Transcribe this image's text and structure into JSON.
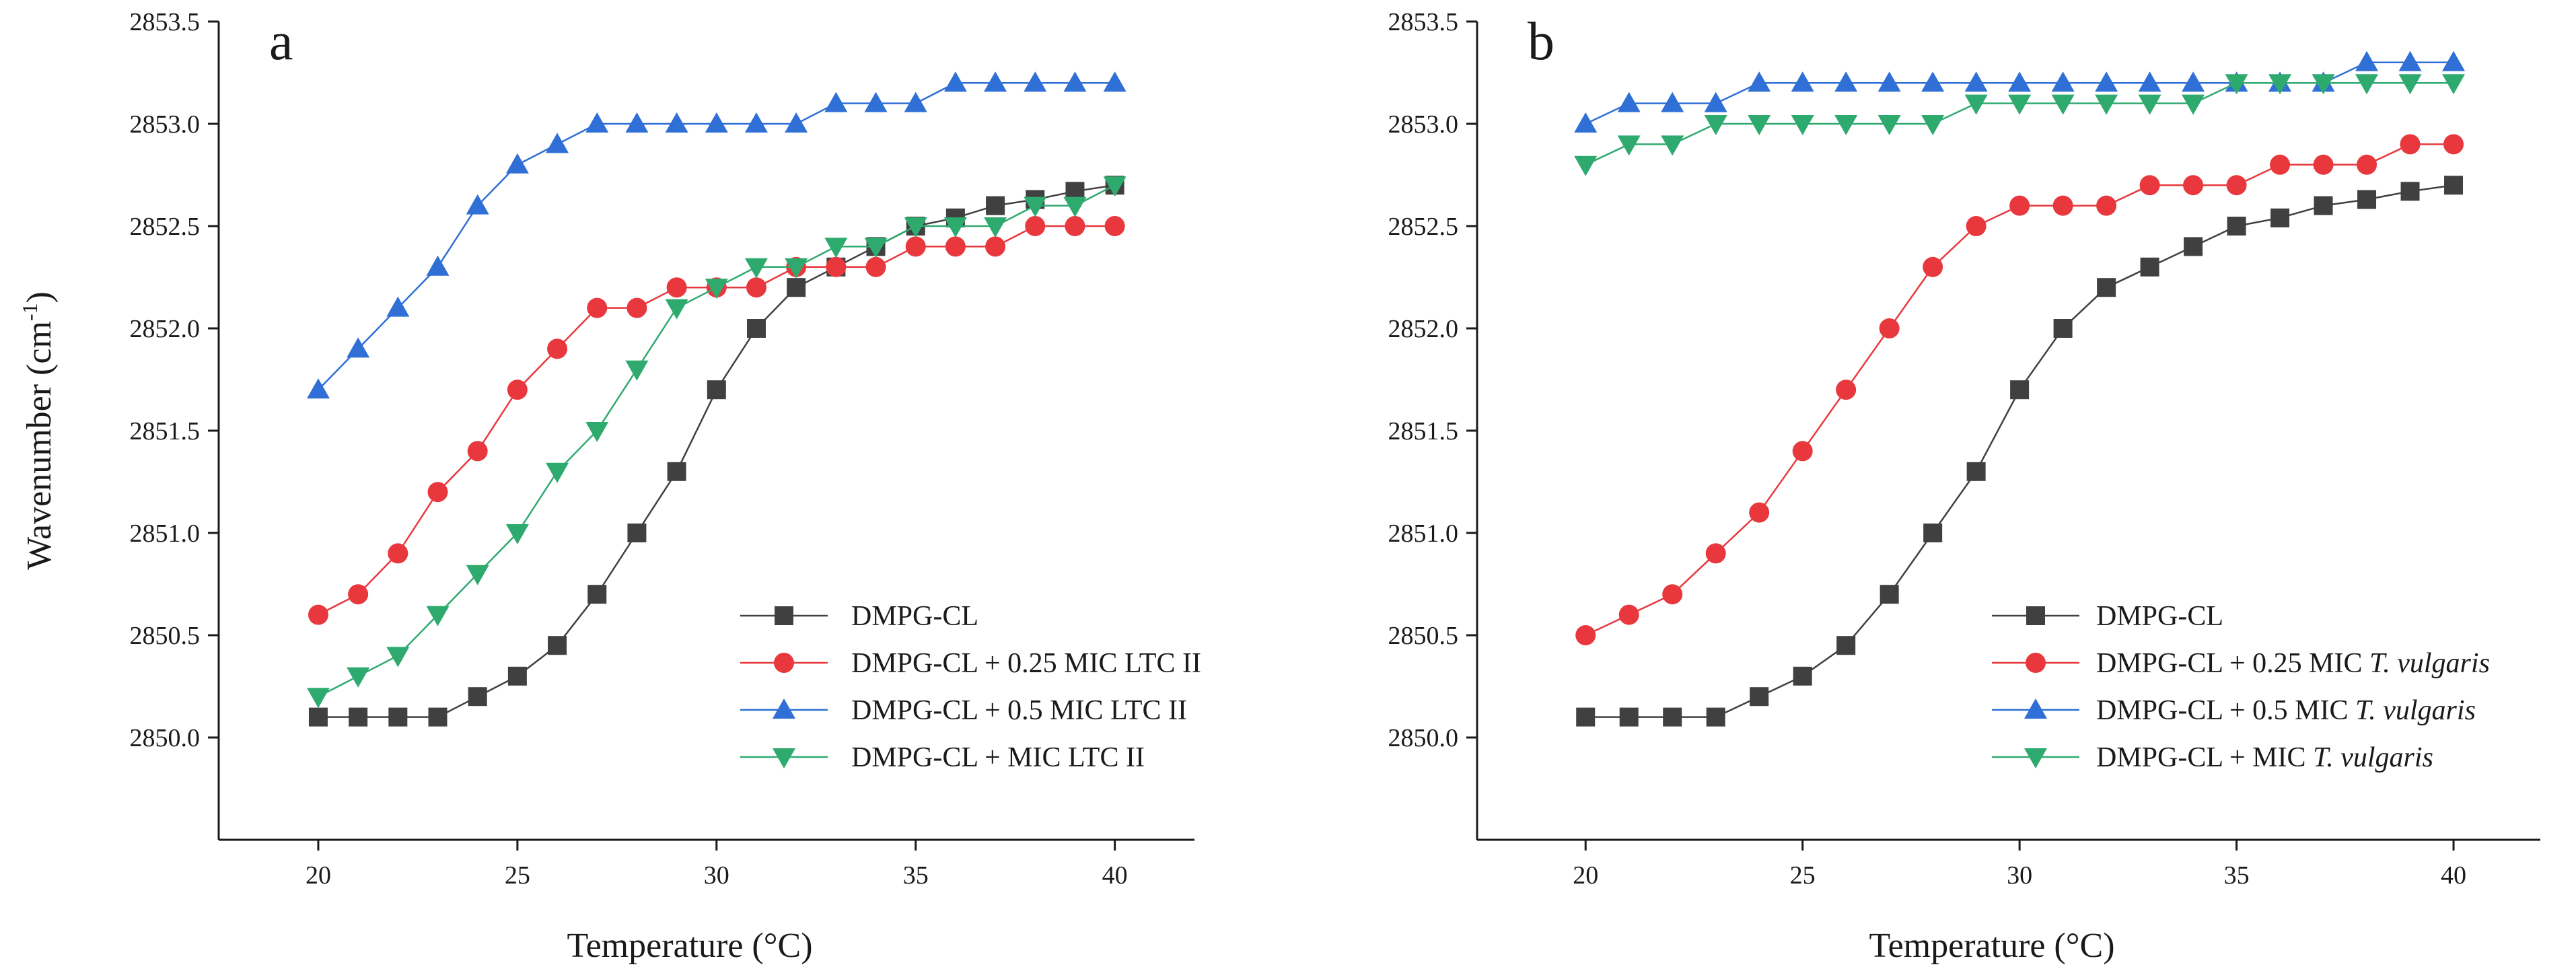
{
  "chart_data": [
    {
      "type": "line",
      "panel_label": "a",
      "xlabel": "Temperature (°C)",
      "ylabel_main": "Wavenumber (cm",
      "ylabel_sup": "-1",
      "ylabel_close": ")",
      "xlim": [
        17.5,
        42
      ],
      "ylim": [
        2849.5,
        2853.5
      ],
      "xticks": [
        20,
        25,
        30,
        35,
        40
      ],
      "xtick_labels": [
        "20",
        "25",
        "30",
        "35",
        "40"
      ],
      "yticks": [
        2850.0,
        2850.5,
        2851.0,
        2851.5,
        2852.0,
        2852.5,
        2853.0,
        2853.5
      ],
      "ytick_labels": [
        "2850.0",
        "2850.5",
        "2851.0",
        "2851.5",
        "2852.0",
        "2852.5",
        "2853.0",
        "2853.5"
      ],
      "grid": false,
      "legend_position": "center-right",
      "x": [
        20,
        21,
        22,
        23,
        24,
        25,
        26,
        27,
        28,
        29,
        30,
        31,
        32,
        33,
        34,
        35,
        36,
        37,
        38,
        39,
        40
      ],
      "series": [
        {
          "name": "DMPG-CL",
          "name_italic": "",
          "color": "#404040",
          "marker": "square",
          "values": [
            2850.1,
            2850.1,
            2850.1,
            2850.1,
            2850.2,
            2850.3,
            2850.45,
            2850.7,
            2851.0,
            2851.3,
            2851.7,
            2852.0,
            2852.2,
            2852.3,
            2852.4,
            2852.5,
            2852.54,
            2852.6,
            2852.63,
            2852.67,
            2852.7
          ]
        },
        {
          "name": "DMPG-CL + 0.25 MIC LTC II",
          "name_italic": "",
          "color": "#e8383d",
          "marker": "circle",
          "values": [
            2850.6,
            2850.7,
            2850.9,
            2851.2,
            2851.4,
            2851.7,
            2851.9,
            2852.1,
            2852.1,
            2852.2,
            2852.2,
            2852.2,
            2852.3,
            2852.3,
            2852.3,
            2852.4,
            2852.4,
            2852.4,
            2852.5,
            2852.5,
            2852.5
          ]
        },
        {
          "name": "DMPG-CL + 0.5 MIC LTC II",
          "name_italic": "",
          "color": "#2f6fd6",
          "marker": "triangle-up",
          "values": [
            2851.7,
            2851.9,
            2852.1,
            2852.3,
            2852.6,
            2852.8,
            2852.9,
            2853.0,
            2853.0,
            2853.0,
            2853.0,
            2853.0,
            2853.0,
            2853.1,
            2853.1,
            2853.1,
            2853.2,
            2853.2,
            2853.2,
            2853.2,
            2853.2
          ]
        },
        {
          "name": "DMPG-CL + MIC LTC II",
          "name_italic": "",
          "color": "#2eaa6f",
          "marker": "triangle-down",
          "values": [
            2850.2,
            2850.3,
            2850.4,
            2850.6,
            2850.8,
            2851.0,
            2851.3,
            2851.5,
            2851.8,
            2852.1,
            2852.2,
            2852.3,
            2852.3,
            2852.4,
            2852.4,
            2852.5,
            2852.5,
            2852.5,
            2852.6,
            2852.6,
            2852.7
          ]
        }
      ]
    },
    {
      "type": "line",
      "panel_label": "b",
      "xlabel": "Temperature (°C)",
      "xlim": [
        17.5,
        42
      ],
      "ylim": [
        2849.5,
        2853.5
      ],
      "xticks": [
        20,
        25,
        30,
        35,
        40
      ],
      "xtick_labels": [
        "20",
        "25",
        "30",
        "35",
        "40"
      ],
      "yticks": [
        2850.0,
        2850.5,
        2851.0,
        2851.5,
        2852.0,
        2852.5,
        2853.0,
        2853.5
      ],
      "ytick_labels": [
        "2850.0",
        "2850.5",
        "2851.0",
        "2851.5",
        "2852.0",
        "2852.5",
        "2853.0",
        "2853.5"
      ],
      "grid": false,
      "legend_position": "center-right",
      "x": [
        20,
        21,
        22,
        23,
        24,
        25,
        26,
        27,
        28,
        29,
        30,
        31,
        32,
        33,
        34,
        35,
        36,
        37,
        38,
        39,
        40
      ],
      "series": [
        {
          "name": "DMPG-CL",
          "name_italic": "",
          "color": "#404040",
          "marker": "square",
          "values": [
            2850.1,
            2850.1,
            2850.1,
            2850.1,
            2850.2,
            2850.3,
            2850.45,
            2850.7,
            2851.0,
            2851.3,
            2851.7,
            2852.0,
            2852.2,
            2852.3,
            2852.4,
            2852.5,
            2852.54,
            2852.6,
            2852.63,
            2852.67,
            2852.7
          ]
        },
        {
          "name": "DMPG-CL + 0.25 MIC ",
          "name_italic": "T. vulgaris",
          "color": "#e8383d",
          "marker": "circle",
          "values": [
            2850.5,
            2850.6,
            2850.7,
            2850.9,
            2851.1,
            2851.4,
            2851.7,
            2852.0,
            2852.3,
            2852.5,
            2852.6,
            2852.6,
            2852.6,
            2852.7,
            2852.7,
            2852.7,
            2852.8,
            2852.8,
            2852.8,
            2852.9,
            2852.9
          ]
        },
        {
          "name": "DMPG-CL + 0.5 MIC ",
          "name_italic": "T. vulgaris",
          "color": "#2f6fd6",
          "marker": "triangle-up",
          "values": [
            2853.0,
            2853.1,
            2853.1,
            2853.1,
            2853.2,
            2853.2,
            2853.2,
            2853.2,
            2853.2,
            2853.2,
            2853.2,
            2853.2,
            2853.2,
            2853.2,
            2853.2,
            2853.2,
            2853.2,
            2853.2,
            2853.3,
            2853.3,
            2853.3
          ]
        },
        {
          "name": "DMPG-CL + MIC ",
          "name_italic": "T. vulgaris",
          "color": "#2eaa6f",
          "marker": "triangle-down",
          "values": [
            2852.8,
            2852.9,
            2852.9,
            2853.0,
            2853.0,
            2853.0,
            2853.0,
            2853.0,
            2853.0,
            2853.1,
            2853.1,
            2853.1,
            2853.1,
            2853.1,
            2853.1,
            2853.2,
            2853.2,
            2853.2,
            2853.2,
            2853.2,
            2853.2
          ]
        }
      ]
    }
  ]
}
